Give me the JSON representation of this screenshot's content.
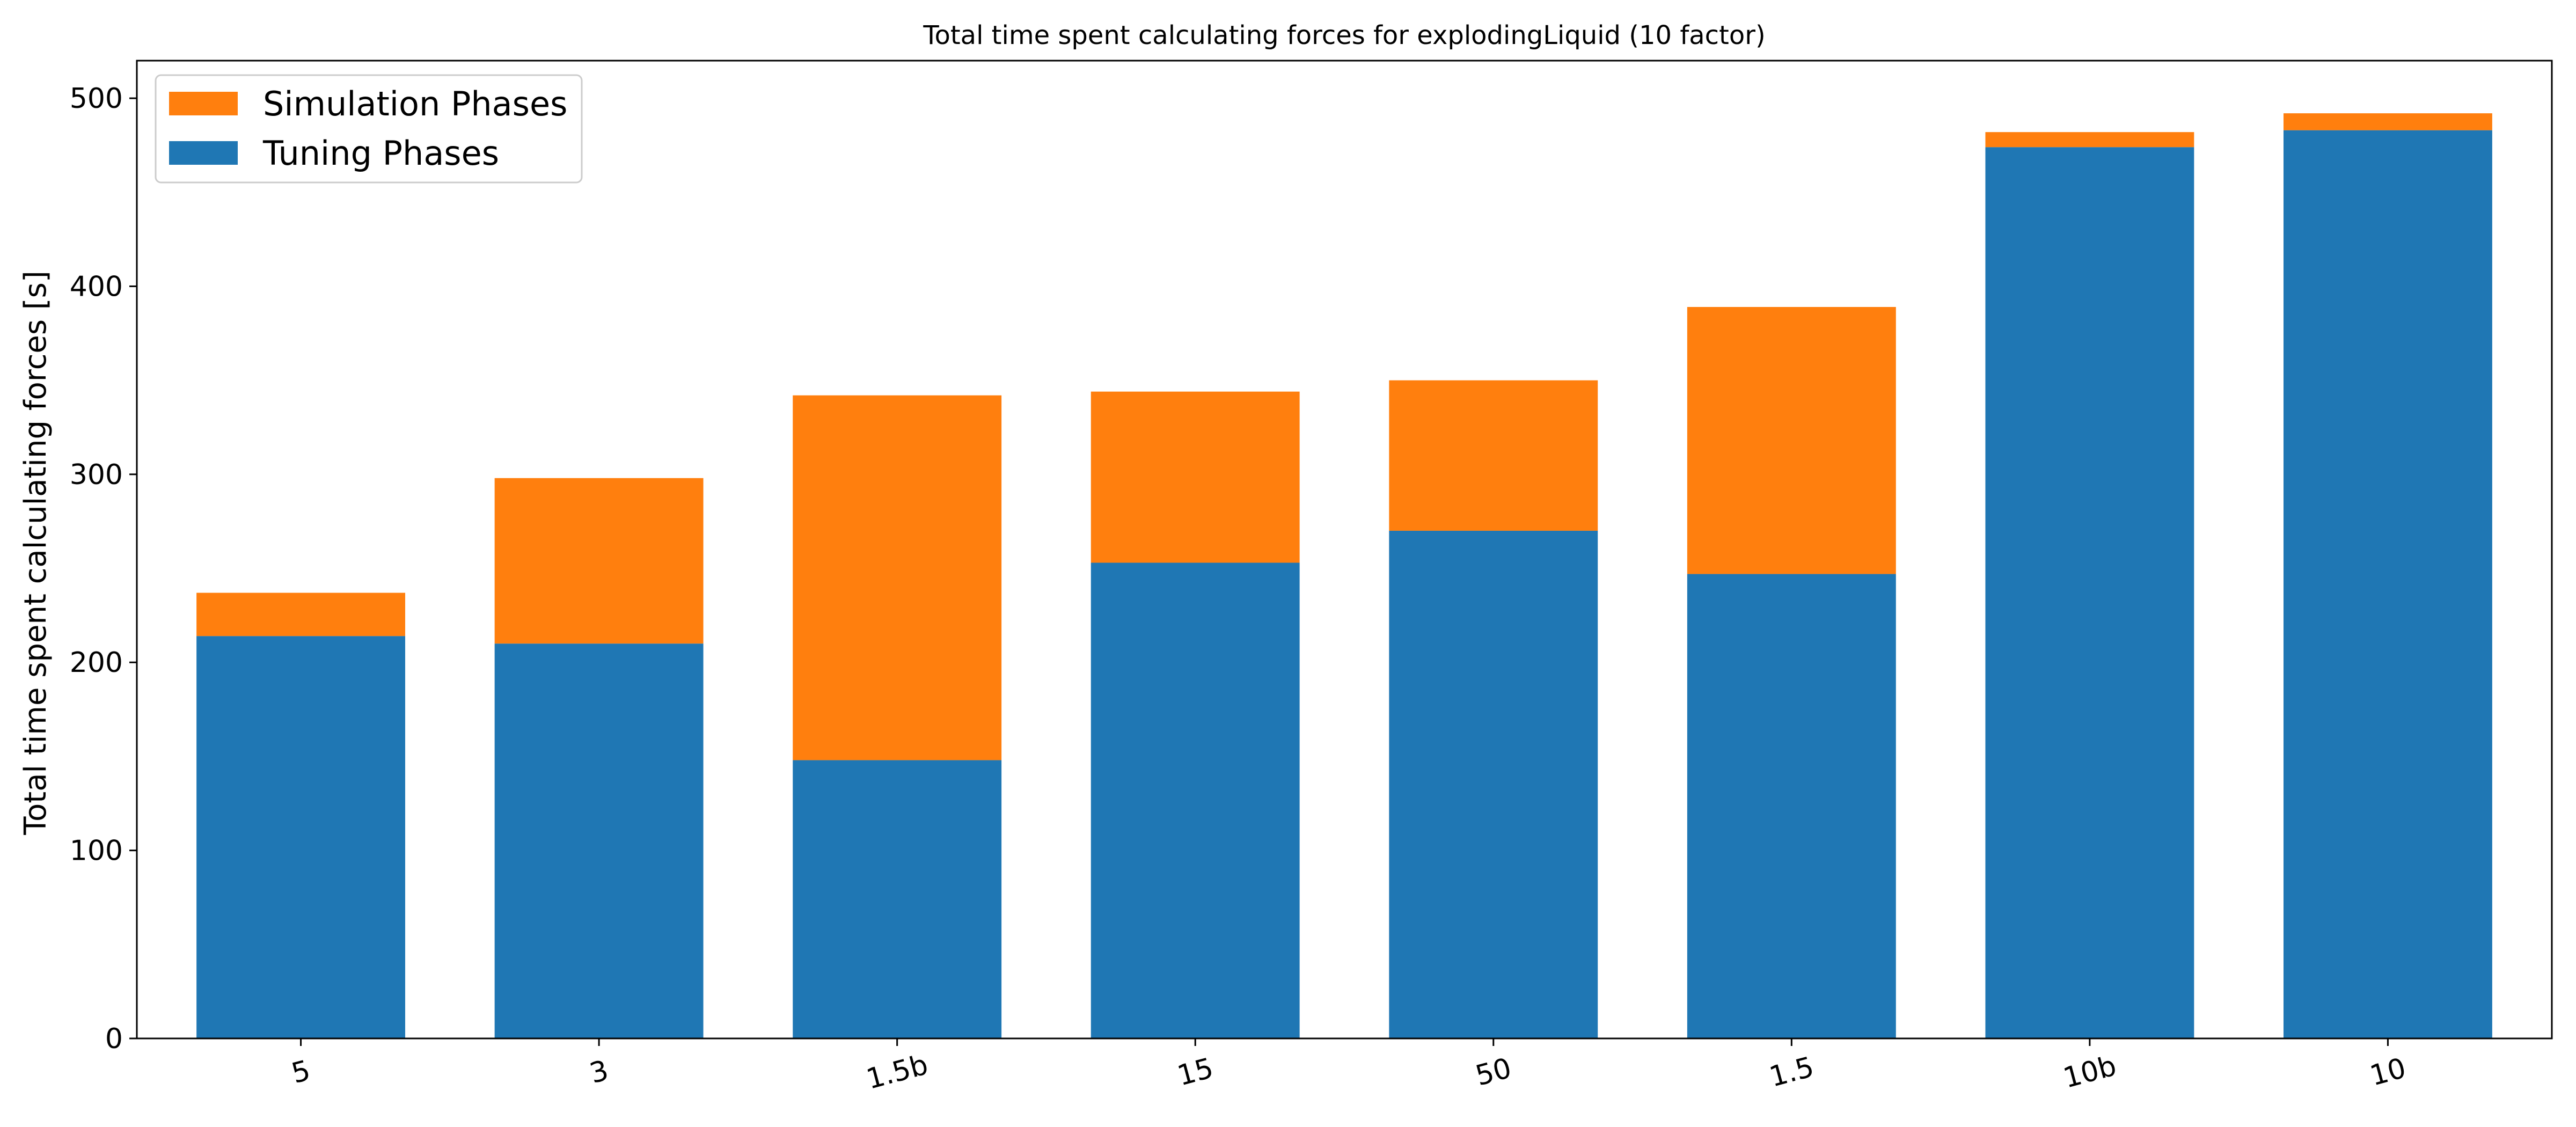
{
  "chart_data": {
    "type": "bar",
    "stacked": true,
    "title": "Total time spent calculating forces for explodingLiquid (10 factor)",
    "xlabel": "",
    "ylabel": "Total time spent calculating forces [s]",
    "categories": [
      "5",
      "3",
      "1.5b",
      "15",
      "50",
      "1.5",
      "10b",
      "10"
    ],
    "series": [
      {
        "name": "Tuning Phases",
        "color": "#1f77b4",
        "values": [
          214,
          210,
          148,
          253,
          270,
          247,
          474,
          483
        ]
      },
      {
        "name": "Simulation Phases",
        "color": "#ff7f0e",
        "values": [
          23,
          88,
          194,
          91,
          80,
          142,
          8,
          9
        ]
      }
    ],
    "ylim": [
      0,
      520
    ],
    "yticks": [
      0,
      100,
      200,
      300,
      400,
      500
    ],
    "grid": false,
    "legend_position": "top-left"
  }
}
